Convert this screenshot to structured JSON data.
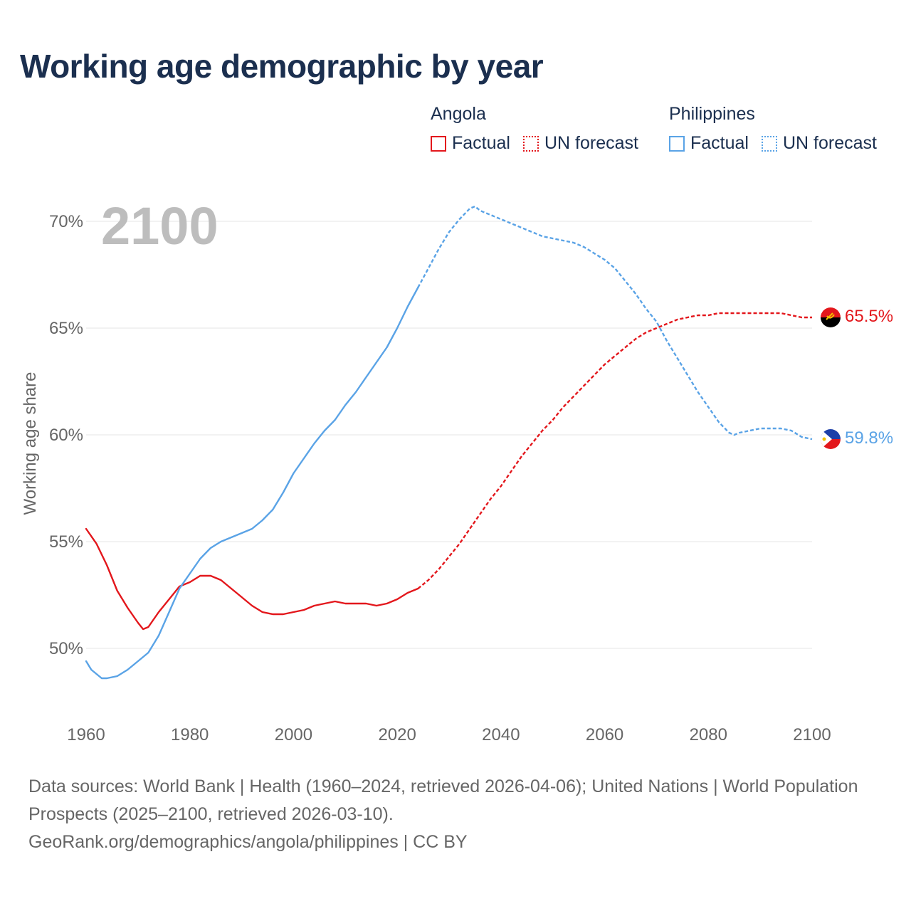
{
  "title": "Working age demographic by year",
  "legend": {
    "groups": [
      {
        "country": "Angola",
        "factual_label": "Factual",
        "forecast_label": "UN forecast",
        "color": "#e3171c"
      },
      {
        "country": "Philippines",
        "factual_label": "Factual",
        "forecast_label": "UN forecast",
        "color": "#5aa3e6"
      }
    ]
  },
  "footer": {
    "sources": "Data sources: World Bank | Health (1960–2024, retrieved 2026-04-06); United Nations | World Population Prospects (2025–2100, retrieved 2026-03-10).",
    "link": "GeoRank.org/demographics/angola/philippines | CC BY"
  },
  "chart_data": {
    "type": "line",
    "title": "Working age demographic by year",
    "xlabel": "",
    "ylabel": "Working age share",
    "year_watermark": "2100",
    "xlim": [
      1960,
      2100
    ],
    "ylim": [
      47.5,
      71
    ],
    "x_ticks": [
      1960,
      1980,
      2000,
      2020,
      2040,
      2060,
      2080,
      2100
    ],
    "y_ticks": [
      {
        "value": 50,
        "label": "50%"
      },
      {
        "value": 55,
        "label": "55%"
      },
      {
        "value": 60,
        "label": "60%"
      },
      {
        "value": 65,
        "label": "65%"
      },
      {
        "value": 70,
        "label": "70%"
      }
    ],
    "grid": true,
    "factual_until": 2024,
    "series": [
      {
        "name": "Angola",
        "color": "#e3171c",
        "end_label": "65.5%",
        "flag": "angola-flag",
        "x": [
          1960,
          1962,
          1964,
          1966,
          1968,
          1970,
          1971,
          1972,
          1974,
          1976,
          1978,
          1980,
          1982,
          1984,
          1986,
          1988,
          1990,
          1992,
          1994,
          1996,
          1998,
          2000,
          2002,
          2004,
          2006,
          2008,
          2010,
          2012,
          2014,
          2016,
          2018,
          2020,
          2022,
          2024,
          2026,
          2028,
          2030,
          2032,
          2034,
          2036,
          2038,
          2040,
          2042,
          2044,
          2046,
          2048,
          2050,
          2052,
          2054,
          2056,
          2058,
          2060,
          2062,
          2064,
          2066,
          2068,
          2070,
          2072,
          2074,
          2076,
          2078,
          2080,
          2082,
          2084,
          2086,
          2088,
          2090,
          2092,
          2094,
          2096,
          2098,
          2100
        ],
        "values": [
          55.6,
          54.9,
          53.9,
          52.7,
          51.9,
          51.2,
          50.9,
          51.0,
          51.7,
          52.3,
          52.9,
          53.1,
          53.4,
          53.4,
          53.2,
          52.8,
          52.4,
          52.0,
          51.7,
          51.6,
          51.6,
          51.7,
          51.8,
          52.0,
          52.1,
          52.2,
          52.1,
          52.1,
          52.1,
          52.0,
          52.1,
          52.3,
          52.6,
          52.8,
          53.2,
          53.7,
          54.3,
          54.9,
          55.6,
          56.3,
          57.0,
          57.6,
          58.3,
          59.0,
          59.6,
          60.2,
          60.7,
          61.3,
          61.8,
          62.3,
          62.8,
          63.3,
          63.7,
          64.1,
          64.5,
          64.8,
          65.0,
          65.2,
          65.4,
          65.5,
          65.6,
          65.6,
          65.7,
          65.7,
          65.7,
          65.7,
          65.7,
          65.7,
          65.7,
          65.6,
          65.5,
          65.5
        ]
      },
      {
        "name": "Philippines",
        "color": "#5aa3e6",
        "end_label": "59.8%",
        "flag": "philippines-flag",
        "x": [
          1960,
          1961,
          1962,
          1963,
          1964,
          1966,
          1968,
          1970,
          1972,
          1974,
          1976,
          1978,
          1980,
          1982,
          1984,
          1986,
          1988,
          1990,
          1992,
          1994,
          1996,
          1998,
          2000,
          2002,
          2004,
          2006,
          2008,
          2010,
          2012,
          2014,
          2016,
          2018,
          2020,
          2022,
          2024,
          2026,
          2028,
          2030,
          2032,
          2034,
          2035,
          2036,
          2038,
          2040,
          2042,
          2044,
          2046,
          2048,
          2050,
          2052,
          2054,
          2056,
          2058,
          2060,
          2062,
          2064,
          2066,
          2068,
          2070,
          2072,
          2074,
          2076,
          2078,
          2080,
          2082,
          2084,
          2085,
          2086,
          2088,
          2090,
          2092,
          2094,
          2096,
          2098,
          2100
        ],
        "values": [
          49.4,
          49.0,
          48.8,
          48.6,
          48.6,
          48.7,
          49.0,
          49.4,
          49.8,
          50.6,
          51.7,
          52.8,
          53.5,
          54.2,
          54.7,
          55.0,
          55.2,
          55.4,
          55.6,
          56.0,
          56.5,
          57.3,
          58.2,
          58.9,
          59.6,
          60.2,
          60.7,
          61.4,
          62.0,
          62.7,
          63.4,
          64.1,
          65.0,
          66.0,
          66.9,
          67.8,
          68.7,
          69.5,
          70.1,
          70.6,
          70.7,
          70.5,
          70.3,
          70.1,
          69.9,
          69.7,
          69.5,
          69.3,
          69.2,
          69.1,
          69.0,
          68.8,
          68.5,
          68.2,
          67.8,
          67.2,
          66.6,
          65.9,
          65.3,
          64.4,
          63.6,
          62.8,
          62.0,
          61.3,
          60.6,
          60.1,
          60.0,
          60.1,
          60.2,
          60.3,
          60.3,
          60.3,
          60.2,
          59.9,
          59.8
        ]
      }
    ]
  }
}
